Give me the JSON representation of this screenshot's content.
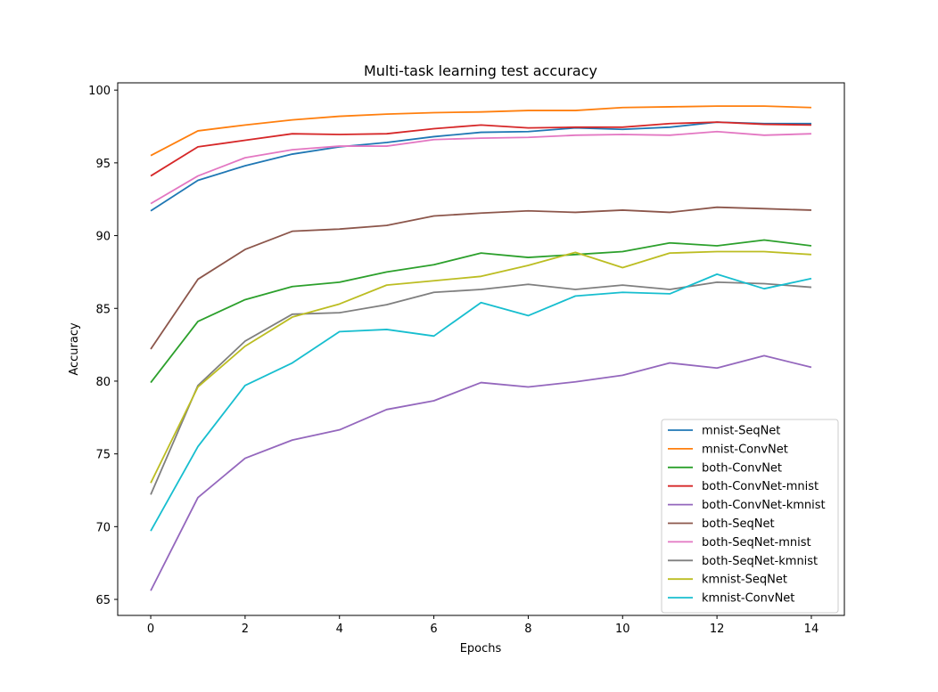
{
  "chart_data": {
    "type": "line",
    "title": "Multi-task learning test accuracy",
    "xlabel": "Epochs",
    "ylabel": "Accuracy",
    "xlim": [
      -0.7,
      14.7
    ],
    "ylim": [
      63.9,
      100.5
    ],
    "xticks": [
      0,
      2,
      4,
      6,
      8,
      10,
      12,
      14
    ],
    "yticks": [
      65,
      70,
      75,
      80,
      85,
      90,
      95,
      100
    ],
    "grid": false,
    "legend_position": "lower-right",
    "x": [
      0,
      1,
      2,
      3,
      4,
      5,
      6,
      7,
      8,
      9,
      10,
      11,
      12,
      13,
      14
    ],
    "series": [
      {
        "name": "mnist-SeqNet",
        "color": "#1f77b4",
        "values": [
          91.7,
          93.8,
          94.8,
          95.6,
          96.1,
          96.4,
          96.8,
          97.1,
          97.15,
          97.4,
          97.3,
          97.45,
          97.8,
          97.7,
          97.7
        ]
      },
      {
        "name": "mnist-ConvNet",
        "color": "#ff7f0e",
        "values": [
          95.5,
          97.2,
          97.6,
          97.95,
          98.2,
          98.35,
          98.45,
          98.5,
          98.6,
          98.6,
          98.8,
          98.85,
          98.9,
          98.9,
          98.8
        ]
      },
      {
        "name": "both-ConvNet",
        "color": "#2ca02c",
        "values": [
          79.9,
          84.1,
          85.6,
          86.5,
          86.8,
          87.5,
          88.0,
          88.8,
          88.5,
          88.7,
          88.9,
          89.5,
          89.3,
          89.7,
          89.3
        ]
      },
      {
        "name": "both-ConvNet-mnist",
        "color": "#d62728",
        "values": [
          94.1,
          96.1,
          96.55,
          97.0,
          96.95,
          97.0,
          97.35,
          97.6,
          97.4,
          97.45,
          97.45,
          97.7,
          97.8,
          97.65,
          97.6
        ]
      },
      {
        "name": "both-ConvNet-kmnist",
        "color": "#9467bd",
        "values": [
          65.6,
          72.0,
          74.7,
          75.95,
          76.65,
          78.05,
          78.65,
          79.9,
          79.6,
          79.95,
          80.4,
          81.25,
          80.9,
          81.75,
          80.95
        ]
      },
      {
        "name": "both-SeqNet",
        "color": "#8c564b",
        "values": [
          82.2,
          87.0,
          89.05,
          90.3,
          90.45,
          90.7,
          91.35,
          91.55,
          91.7,
          91.6,
          91.75,
          91.6,
          91.95,
          91.85,
          91.75
        ]
      },
      {
        "name": "both-SeqNet-mnist",
        "color": "#e377c2",
        "values": [
          92.2,
          94.1,
          95.35,
          95.9,
          96.15,
          96.15,
          96.6,
          96.7,
          96.75,
          96.9,
          96.95,
          96.9,
          97.15,
          96.9,
          97.0
        ]
      },
      {
        "name": "both-SeqNet-kmnist",
        "color": "#7f7f7f",
        "values": [
          72.2,
          79.7,
          82.75,
          84.6,
          84.7,
          85.25,
          86.1,
          86.3,
          86.65,
          86.3,
          86.6,
          86.3,
          86.8,
          86.7,
          86.45
        ]
      },
      {
        "name": "kmnist-SeqNet",
        "color": "#bcbd22",
        "values": [
          73.0,
          79.6,
          82.4,
          84.4,
          85.3,
          86.6,
          86.9,
          87.2,
          87.95,
          88.85,
          87.8,
          88.8,
          88.9,
          88.9,
          88.7
        ]
      },
      {
        "name": "kmnist-ConvNet",
        "color": "#17becf",
        "values": [
          69.7,
          75.5,
          79.7,
          81.25,
          83.4,
          83.55,
          83.1,
          85.4,
          84.5,
          85.85,
          86.1,
          86.0,
          87.35,
          86.35,
          87.05
        ]
      }
    ]
  }
}
